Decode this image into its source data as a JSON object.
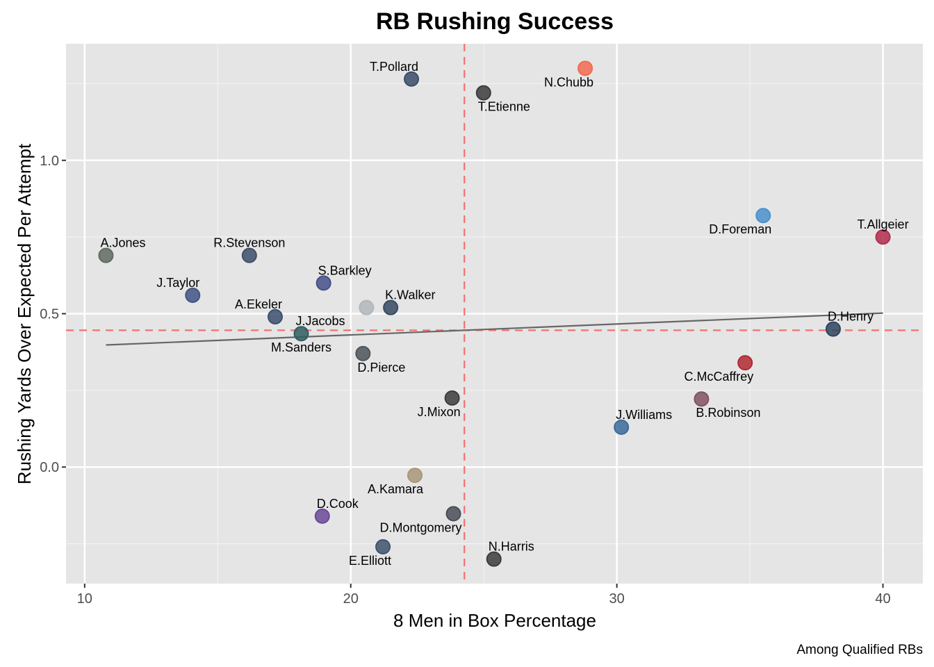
{
  "chart_data": {
    "type": "scatter",
    "title": "RB Rushing Success",
    "xlabel": "8 Men in Box Percentage",
    "ylabel": "Rushing Yards Over Expected Per Attempt",
    "caption": "Among Qualified RBs",
    "xlim": [
      9.3,
      41.5
    ],
    "ylim": [
      -0.38,
      1.38
    ],
    "x_ticks": [
      10,
      20,
      30,
      40
    ],
    "x_tick_labels": [
      "10",
      "20",
      "30",
      "40"
    ],
    "y_ticks": [
      0.0,
      0.5,
      1.0
    ],
    "y_tick_labels": [
      "0.0",
      "0.5",
      "1.0"
    ],
    "x_minor": [
      15,
      25,
      35
    ],
    "y_minor": [
      -0.25,
      0.25,
      0.75,
      1.25
    ],
    "grid": true,
    "legend": "none",
    "reference_lines": {
      "x_mean": 24.27,
      "y_mean": 0.446,
      "color": "#f07272"
    },
    "trend_line": {
      "x": [
        10.8,
        40.0
      ],
      "y": [
        0.398,
        0.502
      ],
      "color": "#666666"
    },
    "points": [
      {
        "name": "A.Jones",
        "x": 10.8,
        "y": 0.69,
        "color": "#5f6b62",
        "label_pos": "above-right"
      },
      {
        "name": "J.Taylor",
        "x": 14.06,
        "y": 0.56,
        "color": "#3f5585",
        "label_pos": "above-left"
      },
      {
        "name": "R.Stevenson",
        "x": 16.19,
        "y": 0.69,
        "color": "#3d4f68",
        "label_pos": "above"
      },
      {
        "name": "A.Ekeler",
        "x": 17.16,
        "y": 0.49,
        "color": "#3a4f6e",
        "label_pos": "above-left"
      },
      {
        "name": "J.Jacobs",
        "x": 18.14,
        "y": 0.435,
        "color": "#2f5e62",
        "label_pos": "above-right"
      },
      {
        "name": "M.Sanders",
        "x": 18.14,
        "y": 0.435,
        "color": "#2f5e62",
        "label_pos": "below",
        "label_only": true
      },
      {
        "name": "S.Barkley",
        "x": 18.98,
        "y": 0.6,
        "color": "#45508a",
        "label_pos": "above-right"
      },
      {
        "name": "",
        "x": 20.59,
        "y": 0.52,
        "color": "#b0b7bb",
        "label_pos": "none"
      },
      {
        "name": "K.Walker",
        "x": 21.5,
        "y": 0.52,
        "color": "#364a62",
        "label_pos": "above-right"
      },
      {
        "name": "D.Pierce",
        "x": 20.46,
        "y": 0.37,
        "color": "#4b555c",
        "label_pos": "below-right"
      },
      {
        "name": "T.Pollard",
        "x": 22.28,
        "y": 1.265,
        "color": "#3a4c68",
        "label_pos": "above-left"
      },
      {
        "name": "T.Etienne",
        "x": 24.99,
        "y": 1.22,
        "color": "#3c3c3c",
        "label_pos": "below-right"
      },
      {
        "name": "N.Chubb",
        "x": 28.81,
        "y": 1.3,
        "color": "#f26b4f",
        "label_pos": "below-left"
      },
      {
        "name": "J.Mixon",
        "x": 23.81,
        "y": 0.225,
        "color": "#3c3c3c",
        "label_pos": "below-left"
      },
      {
        "name": "A.Kamara",
        "x": 22.41,
        "y": -0.027,
        "color": "#a8987a",
        "label_pos": "below-left"
      },
      {
        "name": "D.Cook",
        "x": 18.93,
        "y": -0.16,
        "color": "#6a4a98",
        "label_pos": "above-right"
      },
      {
        "name": "D.Montgomery",
        "x": 23.86,
        "y": -0.152,
        "color": "#4a4d57",
        "label_pos": "below-left"
      },
      {
        "name": "E.Elliott",
        "x": 21.21,
        "y": -0.26,
        "color": "#3e536e",
        "label_pos": "below-left"
      },
      {
        "name": "N.Harris",
        "x": 25.38,
        "y": -0.3,
        "color": "#3c3c3c",
        "label_pos": "above-right"
      },
      {
        "name": "D.Foreman",
        "x": 35.5,
        "y": 0.82,
        "color": "#4a90cd",
        "label_pos": "below-left"
      },
      {
        "name": "T.Allgeier",
        "x": 40.0,
        "y": 0.75,
        "color": "#b22d4e",
        "label_pos": "above"
      },
      {
        "name": "D.Henry",
        "x": 38.13,
        "y": 0.45,
        "color": "#2e4460",
        "label_pos": "above-right"
      },
      {
        "name": "C.McCaffrey",
        "x": 34.82,
        "y": 0.34,
        "color": "#b22a33",
        "label_pos": "below-left"
      },
      {
        "name": "B.Robinson",
        "x": 33.18,
        "y": 0.222,
        "color": "#825260",
        "label_pos": "below-right"
      },
      {
        "name": "J.Williams",
        "x": 30.17,
        "y": 0.13,
        "color": "#3c6a9a",
        "label_pos": "above-right"
      }
    ]
  }
}
